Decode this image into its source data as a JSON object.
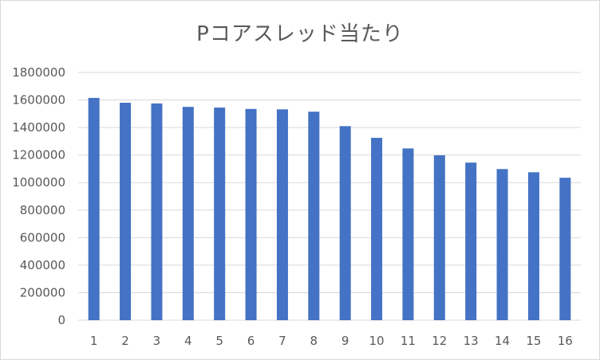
{
  "chart_data": {
    "type": "bar",
    "title": "Pコアスレッド当たり",
    "xlabel": "",
    "ylabel": "",
    "categories": [
      "1",
      "2",
      "3",
      "4",
      "5",
      "6",
      "7",
      "8",
      "9",
      "10",
      "11",
      "12",
      "13",
      "14",
      "15",
      "16"
    ],
    "values": [
      1615000,
      1580000,
      1575000,
      1550000,
      1545000,
      1535000,
      1532000,
      1515000,
      1410000,
      1325000,
      1248000,
      1198000,
      1145000,
      1098000,
      1075000,
      1035000
    ],
    "yticks": [
      "0",
      "200000",
      "400000",
      "600000",
      "800000",
      "1000000",
      "1200000",
      "1400000",
      "1600000",
      "1800000"
    ],
    "ylim": [
      0,
      1800000
    ],
    "grid": true,
    "legend": "none",
    "bar_color": "#4472c4",
    "grid_color": "#d9d9d9",
    "text_color": "#595959"
  }
}
